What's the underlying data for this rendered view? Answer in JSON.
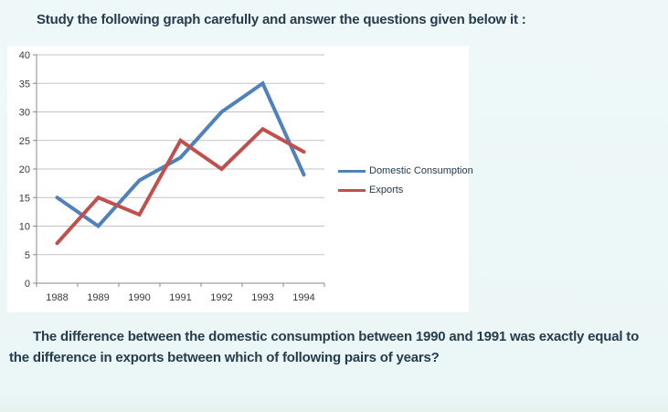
{
  "page": {
    "background": "#ebf6f6",
    "instruction": "Study the following graph carefully and answer the questions given below it :",
    "question": "The difference between the domestic consumption between 1990 and 1991 was exactly equal to the difference in exports between which of following pairs of years?"
  },
  "chart_data": {
    "type": "line",
    "title": "",
    "xlabel": "",
    "ylabel": "",
    "categories": [
      "1988",
      "1989",
      "1990",
      "1991",
      "1992",
      "1993",
      "1994"
    ],
    "series": [
      {
        "name": "Domestic Consumption",
        "color": "#4f81bd",
        "values": [
          15,
          10,
          18,
          22,
          30,
          35,
          19
        ]
      },
      {
        "name": "Exports",
        "color": "#c0504d",
        "values": [
          7,
          15,
          12,
          25,
          20,
          27,
          23
        ]
      }
    ],
    "ylim": [
      0,
      40
    ],
    "ytick_step": 5,
    "grid": true,
    "legend_position": "right"
  },
  "chart_style": {
    "plot_background": "#ffffff",
    "gridline_color": "#c3c3c3",
    "axis_color": "#8a8a8a",
    "tick_text_color": "#3a3a3a"
  }
}
